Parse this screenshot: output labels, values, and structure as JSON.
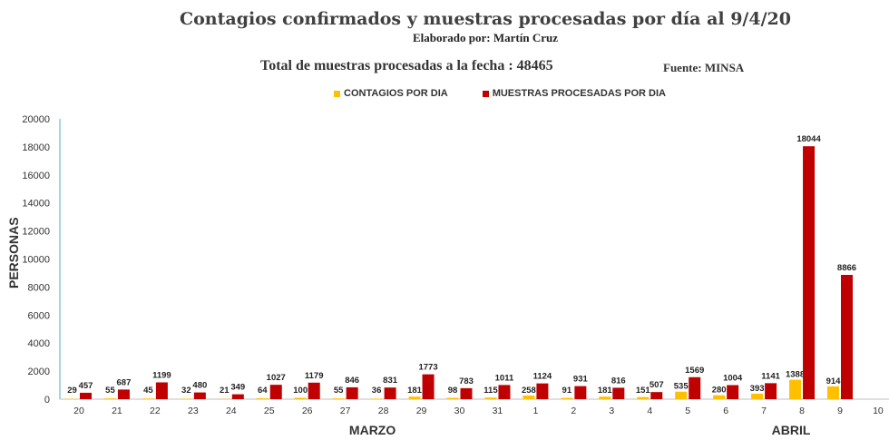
{
  "header": {
    "title": "Contagios confirmados y muestras procesadas por día al 9/4/20",
    "subtitle": "Elaborado por: Martín Cruz",
    "total_text": "Total de muestras procesadas a la fecha : 48465",
    "source_text": "Fuente: MINSA"
  },
  "colors": {
    "contagios": "#FFC000",
    "muestras": "#C00000",
    "axis": "#4bacc6",
    "text": "#333333"
  },
  "chart_data": {
    "type": "bar",
    "ylabel": "PERSONAS",
    "ylim": [
      0,
      20000
    ],
    "yticks": [
      0,
      2000,
      4000,
      6000,
      8000,
      10000,
      12000,
      14000,
      16000,
      18000,
      20000
    ],
    "categories": [
      "20",
      "21",
      "22",
      "23",
      "24",
      "25",
      "26",
      "27",
      "28",
      "29",
      "30",
      "31",
      "1",
      "2",
      "3",
      "4",
      "5",
      "6",
      "7",
      "8",
      "9",
      "10"
    ],
    "group_labels": [
      {
        "label": "MARZO",
        "under_category": "28"
      },
      {
        "label": "ABRIL",
        "under_category": "8"
      }
    ],
    "series": [
      {
        "name": "CONTAGIOS POR DIA",
        "color": "#FFC000",
        "values": [
          29,
          55,
          45,
          32,
          21,
          64,
          100,
          55,
          36,
          181,
          98,
          115,
          258,
          91,
          181,
          151,
          535,
          280,
          393,
          1388,
          914,
          null
        ]
      },
      {
        "name": "MUESTRAS PROCESADAS POR DIA",
        "color": "#C00000",
        "values": [
          457,
          687,
          1199,
          480,
          349,
          1027,
          1179,
          846,
          831,
          1773,
          783,
          1011,
          1124,
          931,
          816,
          507,
          1569,
          1004,
          1141,
          18044,
          8866,
          null
        ]
      }
    ]
  }
}
